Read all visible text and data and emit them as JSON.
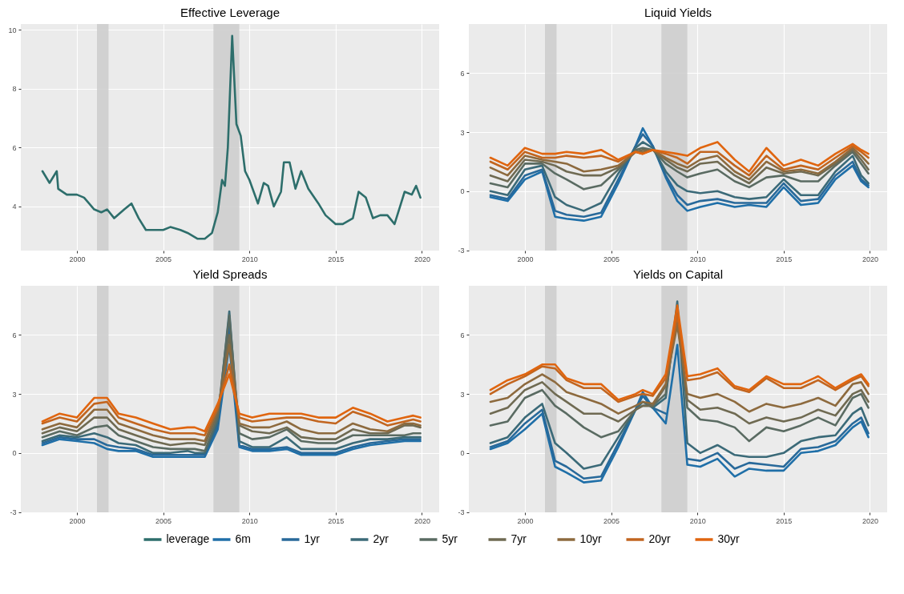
{
  "chart_data": [
    {
      "type": "line",
      "title": "Effective Leverage",
      "xlim": [
        "1996-10",
        "2021-01"
      ],
      "xticks": [
        "2000",
        "2005",
        "2010",
        "2015",
        "2020"
      ],
      "ylim": [
        2.5,
        10.2
      ],
      "yticks": [
        4,
        6,
        8,
        10
      ],
      "grid": true,
      "legend": "bottom",
      "bands": [
        {
          "axis": "x",
          "from": "2001-03",
          "to": "2001-11",
          "color": "#cccccc"
        },
        {
          "axis": "x",
          "from": "2007-12",
          "to": "2009-06",
          "color": "#cccccc"
        }
      ],
      "series": [
        {
          "name": "leverage",
          "color": "#2d6e6b",
          "x": [
            "1998-01",
            "1998-06",
            "1998-11",
            "1998-12",
            "1999-06",
            "2000-01",
            "2000-06",
            "2001-01",
            "2001-06",
            "2001-10",
            "2002-03",
            "2002-10",
            "2003-03",
            "2003-08",
            "2004-01",
            "2004-06",
            "2005-01",
            "2005-06",
            "2006-01",
            "2006-06",
            "2007-01",
            "2007-06",
            "2007-11",
            "2008-03",
            "2008-06",
            "2008-08",
            "2008-10",
            "2009-01",
            "2009-04",
            "2009-07",
            "2009-10",
            "2010-01",
            "2010-07",
            "2010-11",
            "2011-02",
            "2011-06",
            "2011-11",
            "2012-01",
            "2012-05",
            "2012-09",
            "2013-01",
            "2013-06",
            "2014-01",
            "2014-06",
            "2015-01",
            "2015-06",
            "2016-01",
            "2016-05",
            "2016-10",
            "2017-03",
            "2017-08",
            "2018-01",
            "2018-06",
            "2019-01",
            "2019-06",
            "2019-09",
            "2019-12"
          ],
          "values": [
            5.2,
            4.8,
            5.2,
            4.6,
            4.4,
            4.4,
            4.3,
            3.9,
            3.8,
            3.9,
            3.6,
            3.9,
            4.1,
            3.6,
            3.2,
            3.2,
            3.2,
            3.3,
            3.2,
            3.1,
            2.9,
            2.9,
            3.1,
            3.8,
            4.9,
            4.7,
            6.0,
            9.8,
            6.8,
            6.4,
            5.2,
            4.9,
            4.1,
            4.8,
            4.7,
            4.0,
            4.5,
            5.5,
            5.5,
            4.6,
            5.2,
            4.6,
            4.1,
            3.7,
            3.4,
            3.4,
            3.6,
            4.5,
            4.3,
            3.6,
            3.7,
            3.7,
            3.4,
            4.5,
            4.4,
            4.7,
            4.3
          ]
        }
      ]
    },
    {
      "type": "line",
      "title": "Liquid Yields",
      "xlim": [
        "1996-10",
        "2021-01"
      ],
      "xticks": [
        "2000",
        "2005",
        "2010",
        "2015",
        "2020"
      ],
      "ylim": [
        -3.02,
        8.5
      ],
      "yticks": [
        -3,
        0,
        3,
        6
      ],
      "grid": true,
      "legend": "bottom",
      "bands": [
        {
          "axis": "x",
          "from": "2001-03",
          "to": "2001-11",
          "color": "#cccccc"
        },
        {
          "axis": "x",
          "from": "2007-12",
          "to": "2009-06",
          "color": "#cccccc"
        }
      ],
      "x": [
        "1998-01",
        "1999-01",
        "2000-01",
        "2001-01",
        "2001-10",
        "2002-06",
        "2003-06",
        "2004-06",
        "2005-06",
        "2006-06",
        "2006-11",
        "2007-06",
        "2008-03",
        "2008-11",
        "2009-06",
        "2010-03",
        "2011-03",
        "2012-03",
        "2013-01",
        "2014-01",
        "2015-01",
        "2016-01",
        "2017-01",
        "2018-01",
        "2019-01",
        "2019-07",
        "2019-12"
      ],
      "series": [
        {
          "name": "6m",
          "color": "#1f6fa8",
          "values": [
            -0.3,
            -0.5,
            0.6,
            1.0,
            -1.3,
            -1.4,
            -1.5,
            -1.3,
            0.4,
            2.3,
            3.2,
            2.3,
            0.7,
            -0.5,
            -1.0,
            -0.8,
            -0.6,
            -0.8,
            -0.7,
            -0.8,
            0.2,
            -0.7,
            -0.6,
            0.6,
            1.3,
            0.5,
            0.2
          ]
        },
        {
          "name": "1yr",
          "color": "#28699a",
          "values": [
            -0.2,
            -0.4,
            0.8,
            1.1,
            -1.0,
            -1.2,
            -1.3,
            -1.1,
            0.6,
            2.3,
            2.9,
            2.3,
            0.8,
            -0.2,
            -0.7,
            -0.5,
            -0.4,
            -0.6,
            -0.6,
            -0.6,
            0.4,
            -0.5,
            -0.4,
            0.8,
            1.5,
            0.6,
            0.3
          ]
        },
        {
          "name": "2yr",
          "color": "#3b6a78",
          "values": [
            0.0,
            -0.2,
            1.1,
            1.3,
            -0.3,
            -0.7,
            -1.0,
            -0.6,
            0.9,
            2.2,
            2.5,
            2.2,
            1.0,
            0.3,
            0.0,
            -0.1,
            0.0,
            -0.3,
            -0.4,
            -0.3,
            0.6,
            -0.2,
            -0.2,
            1.0,
            1.8,
            0.8,
            0.4
          ]
        },
        {
          "name": "5yr",
          "color": "#5a6b62",
          "values": [
            0.4,
            0.2,
            1.4,
            1.4,
            0.9,
            0.6,
            0.1,
            0.3,
            1.1,
            2.1,
            2.2,
            2.1,
            1.4,
            1.0,
            0.7,
            0.9,
            1.1,
            0.5,
            0.2,
            0.7,
            0.8,
            0.5,
            0.5,
            1.3,
            2.0,
            1.4,
            0.9
          ]
        },
        {
          "name": "7yr",
          "color": "#6f6a52",
          "values": [
            0.8,
            0.5,
            1.6,
            1.5,
            1.3,
            1.0,
            0.8,
            0.8,
            1.2,
            2.0,
            2.1,
            2.1,
            1.6,
            1.2,
            1.0,
            1.4,
            1.5,
            0.8,
            0.4,
            1.2,
            0.9,
            1.0,
            0.8,
            1.4,
            2.1,
            1.6,
            1.1
          ]
        },
        {
          "name": "10yr",
          "color": "#8d6a3e",
          "values": [
            1.2,
            0.8,
            1.8,
            1.6,
            1.5,
            1.4,
            1.0,
            1.1,
            1.3,
            2.0,
            2.0,
            2.1,
            1.7,
            1.4,
            1.2,
            1.6,
            1.8,
            1.0,
            0.6,
            1.5,
            1.0,
            1.1,
            0.9,
            1.5,
            2.2,
            1.8,
            1.4
          ]
        },
        {
          "name": "20yr",
          "color": "#c2651f",
          "values": [
            1.5,
            1.1,
            2.0,
            1.7,
            1.7,
            1.8,
            1.7,
            1.8,
            1.5,
            2.0,
            1.9,
            2.1,
            1.9,
            1.7,
            1.4,
            2.0,
            2.0,
            1.3,
            0.8,
            1.8,
            1.1,
            1.3,
            1.1,
            1.7,
            2.3,
            2.0,
            1.7
          ]
        },
        {
          "name": "30yr",
          "color": "#e0650f",
          "values": [
            1.7,
            1.3,
            2.2,
            1.9,
            1.9,
            2.0,
            1.9,
            2.1,
            1.6,
            2.0,
            1.9,
            2.1,
            2.0,
            1.9,
            1.8,
            2.2,
            2.5,
            1.6,
            1.0,
            2.2,
            1.3,
            1.6,
            1.3,
            1.9,
            2.4,
            2.1,
            1.9
          ]
        }
      ]
    },
    {
      "type": "line",
      "title": "Yield Spreads",
      "xlim": [
        "1996-10",
        "2021-01"
      ],
      "xticks": [
        "2000",
        "2005",
        "2010",
        "2015",
        "2020"
      ],
      "ylim": [
        -3.02,
        8.5
      ],
      "yticks": [
        -3,
        0,
        3,
        6
      ],
      "grid": true,
      "bands": [
        {
          "axis": "x",
          "from": "2001-03",
          "to": "2001-11",
          "color": "#cccccc"
        },
        {
          "axis": "x",
          "from": "2007-12",
          "to": "2009-06",
          "color": "#cccccc"
        }
      ],
      "x": [
        "1998-01",
        "1999-01",
        "2000-01",
        "2001-01",
        "2001-10",
        "2002-06",
        "2003-06",
        "2004-06",
        "2005-06",
        "2006-06",
        "2006-11",
        "2007-06",
        "2008-03",
        "2008-11",
        "2009-06",
        "2010-03",
        "2011-03",
        "2012-03",
        "2013-01",
        "2014-01",
        "2015-01",
        "2016-01",
        "2017-01",
        "2018-01",
        "2019-01",
        "2019-07",
        "2019-12"
      ],
      "series": [
        {
          "color": "#1f6fa8",
          "values": [
            0.4,
            0.7,
            0.6,
            0.5,
            0.2,
            0.1,
            0.1,
            -0.2,
            -0.2,
            -0.2,
            -0.2,
            -0.2,
            1.2,
            5.5,
            0.3,
            0.1,
            0.1,
            0.2,
            -0.1,
            -0.1,
            -0.1,
            0.2,
            0.4,
            0.5,
            0.6,
            0.6,
            0.6
          ]
        },
        {
          "color": "#28699a",
          "values": [
            0.5,
            0.8,
            0.7,
            0.7,
            0.4,
            0.3,
            0.2,
            -0.1,
            -0.1,
            -0.1,
            -0.1,
            -0.1,
            1.4,
            6.5,
            0.4,
            0.2,
            0.2,
            0.3,
            0.0,
            0.0,
            0.0,
            0.3,
            0.5,
            0.6,
            0.7,
            0.7,
            0.7
          ]
        },
        {
          "color": "#3b6a78",
          "values": [
            0.6,
            0.9,
            0.8,
            1.0,
            0.8,
            0.5,
            0.4,
            0.0,
            0.0,
            0.1,
            0.0,
            0.0,
            1.6,
            7.2,
            0.6,
            0.3,
            0.3,
            0.8,
            0.2,
            0.2,
            0.2,
            0.5,
            0.7,
            0.7,
            0.8,
            0.8,
            0.8
          ]
        },
        {
          "color": "#5a6b62",
          "values": [
            0.8,
            1.1,
            0.9,
            1.3,
            1.4,
            0.9,
            0.6,
            0.3,
            0.2,
            0.2,
            0.2,
            0.1,
            1.8,
            7.0,
            1.0,
            0.7,
            0.8,
            1.2,
            0.6,
            0.5,
            0.5,
            0.9,
            0.9,
            0.9,
            0.9,
            1.0,
            1.0
          ]
        },
        {
          "color": "#6f6a52",
          "values": [
            1.0,
            1.3,
            1.1,
            1.8,
            1.8,
            1.2,
            0.9,
            0.6,
            0.4,
            0.5,
            0.5,
            0.4,
            2.0,
            6.0,
            1.4,
            1.1,
            1.0,
            1.3,
            0.8,
            0.7,
            0.7,
            1.2,
            1.0,
            1.0,
            1.4,
            1.4,
            1.3
          ]
        },
        {
          "color": "#8d6a3e",
          "values": [
            1.2,
            1.5,
            1.3,
            2.2,
            2.2,
            1.5,
            1.2,
            0.9,
            0.7,
            0.7,
            0.7,
            0.6,
            2.2,
            5.5,
            1.5,
            1.3,
            1.3,
            1.6,
            1.2,
            1.0,
            1.0,
            1.5,
            1.2,
            1.1,
            1.5,
            1.5,
            1.4
          ]
        },
        {
          "color": "#c2651f",
          "values": [
            1.5,
            1.8,
            1.6,
            2.5,
            2.6,
            1.8,
            1.5,
            1.2,
            1.0,
            1.0,
            1.0,
            0.9,
            2.3,
            4.5,
            1.8,
            1.6,
            1.7,
            1.8,
            1.8,
            1.6,
            1.5,
            2.1,
            1.8,
            1.4,
            1.6,
            1.7,
            1.6
          ]
        },
        {
          "color": "#e0650f",
          "values": [
            1.6,
            2.0,
            1.8,
            2.8,
            2.8,
            2.0,
            1.8,
            1.5,
            1.2,
            1.3,
            1.3,
            1.1,
            2.5,
            4.0,
            2.0,
            1.8,
            2.0,
            2.0,
            2.0,
            1.8,
            1.8,
            2.3,
            2.0,
            1.6,
            1.8,
            1.9,
            1.8
          ]
        }
      ]
    },
    {
      "type": "line",
      "title": "Yields on Capital",
      "xlim": [
        "1996-10",
        "2021-01"
      ],
      "xticks": [
        "2000",
        "2005",
        "2010",
        "2015",
        "2020"
      ],
      "ylim": [
        -3.02,
        8.5
      ],
      "yticks": [
        -3,
        0,
        3,
        6
      ],
      "grid": true,
      "bands": [
        {
          "axis": "x",
          "from": "2001-03",
          "to": "2001-11",
          "color": "#cccccc"
        },
        {
          "axis": "x",
          "from": "2007-12",
          "to": "2009-06",
          "color": "#cccccc"
        }
      ],
      "x": [
        "1998-01",
        "1999-01",
        "2000-01",
        "2001-01",
        "2001-10",
        "2002-06",
        "2003-06",
        "2004-06",
        "2005-06",
        "2006-06",
        "2006-11",
        "2007-06",
        "2008-03",
        "2008-11",
        "2009-06",
        "2010-03",
        "2011-03",
        "2012-03",
        "2013-01",
        "2014-01",
        "2015-01",
        "2016-01",
        "2017-01",
        "2018-01",
        "2019-01",
        "2019-07",
        "2019-12"
      ],
      "series": [
        {
          "color": "#1f6fa8",
          "values": [
            0.2,
            0.5,
            1.2,
            2.0,
            -0.7,
            -1.0,
            -1.5,
            -1.4,
            0.3,
            2.2,
            3.1,
            2.3,
            1.5,
            5.5,
            -0.6,
            -0.7,
            -0.3,
            -1.2,
            -0.8,
            -0.9,
            -0.9,
            0.0,
            0.1,
            0.4,
            1.3,
            1.6,
            0.8
          ]
        },
        {
          "color": "#28699a",
          "values": [
            0.3,
            0.6,
            1.5,
            2.2,
            -0.4,
            -0.7,
            -1.3,
            -1.2,
            0.5,
            2.2,
            2.9,
            2.3,
            2.0,
            null,
            -0.3,
            -0.4,
            0.0,
            -0.8,
            -0.5,
            -0.6,
            -0.7,
            0.2,
            0.3,
            0.6,
            1.5,
            1.8,
            1.0
          ]
        },
        {
          "color": "#3b6a78",
          "values": [
            0.5,
            0.8,
            1.8,
            2.5,
            0.5,
            0.0,
            -0.8,
            -0.6,
            0.8,
            2.2,
            2.6,
            2.3,
            2.8,
            7.7,
            0.5,
            0.0,
            0.4,
            -0.1,
            -0.2,
            -0.2,
            0.0,
            0.6,
            0.8,
            0.9,
            2.0,
            2.3,
            1.4
          ]
        },
        {
          "color": "#5a6b62",
          "values": [
            1.4,
            1.6,
            2.8,
            3.2,
            2.4,
            2.0,
            1.3,
            0.8,
            1.1,
            2.2,
            2.4,
            2.4,
            3.0,
            7.2,
            2.3,
            1.7,
            1.6,
            1.3,
            0.6,
            1.3,
            1.1,
            1.4,
            1.8,
            1.4,
            2.8,
            3.0,
            2.3
          ]
        },
        {
          "color": "#6f6a52",
          "values": [
            2.0,
            2.3,
            3.2,
            3.6,
            3.0,
            2.6,
            2.0,
            2.0,
            1.6,
            2.2,
            2.4,
            2.4,
            3.4,
            6.8,
            2.7,
            2.2,
            2.3,
            2.0,
            1.5,
            1.8,
            1.6,
            1.8,
            2.2,
            1.9,
            3.0,
            3.2,
            2.6
          ]
        },
        {
          "color": "#8d6a3e",
          "values": [
            2.6,
            2.8,
            3.5,
            4.0,
            3.6,
            3.1,
            2.8,
            2.5,
            2.0,
            2.4,
            2.6,
            2.5,
            3.5,
            6.5,
            3.0,
            2.8,
            3.0,
            2.6,
            2.1,
            2.5,
            2.3,
            2.5,
            2.8,
            2.4,
            3.5,
            3.6,
            3.0
          ]
        },
        {
          "color": "#c2651f",
          "values": [
            3.0,
            3.5,
            3.9,
            4.4,
            4.3,
            3.7,
            3.3,
            3.3,
            2.6,
            2.9,
            3.0,
            2.9,
            3.8,
            7.0,
            3.7,
            3.8,
            4.1,
            3.3,
            3.1,
            3.8,
            3.3,
            3.3,
            3.7,
            3.2,
            3.7,
            3.9,
            3.4
          ]
        },
        {
          "color": "#e0650f",
          "values": [
            3.2,
            3.7,
            4.0,
            4.5,
            4.5,
            3.8,
            3.5,
            3.5,
            2.7,
            3.0,
            3.2,
            3.0,
            4.0,
            7.5,
            3.9,
            4.0,
            4.3,
            3.4,
            3.2,
            3.9,
            3.5,
            3.5,
            3.9,
            3.3,
            3.8,
            4.0,
            3.5
          ]
        }
      ]
    }
  ]
}
